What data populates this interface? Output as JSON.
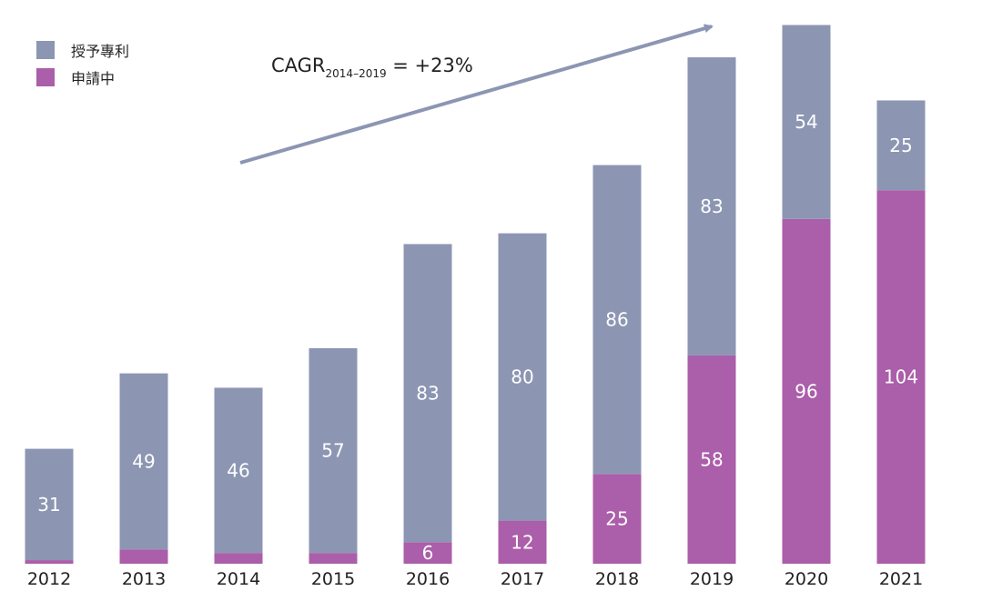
{
  "chart_data": {
    "type": "bar",
    "stacked": true,
    "categories": [
      "2012",
      "2013",
      "2014",
      "2015",
      "2016",
      "2017",
      "2018",
      "2019",
      "2020",
      "2021"
    ],
    "series": [
      {
        "name": "申請中",
        "color": "#ab5ea9",
        "values": [
          1,
          4,
          3,
          3,
          6,
          12,
          25,
          58,
          96,
          104
        ],
        "labels": [
          "",
          "",
          "",
          "",
          "6",
          "12",
          "25",
          "58",
          "96",
          "104"
        ]
      },
      {
        "name": "授予專利",
        "color": "#8c96b3",
        "values": [
          31,
          49,
          46,
          57,
          83,
          80,
          86,
          83,
          54,
          25
        ],
        "labels": [
          "31",
          "49",
          "46",
          "57",
          "83",
          "80",
          "86",
          "83",
          "54",
          "25"
        ]
      }
    ],
    "title": "",
    "xlabel": "",
    "ylabel": "",
    "ylim": [
      0,
      150
    ],
    "grid": false,
    "legend_position": "top-left",
    "annotation": {
      "text": "CAGR",
      "subscript": "2014–2019",
      "suffix": " = +23%",
      "arrow_color": "#8c96b3"
    }
  }
}
